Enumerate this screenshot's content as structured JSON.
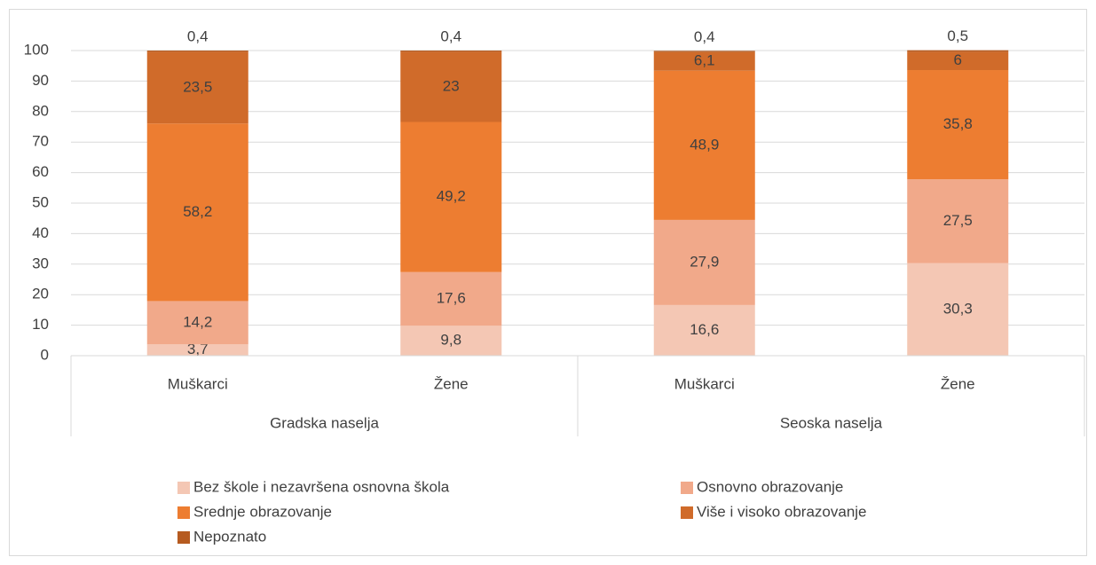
{
  "chart_data": {
    "type": "stacked_bar",
    "categories": [
      "Muškarci",
      "Žene",
      "Muškarci",
      "Žene"
    ],
    "groups": [
      {
        "label": "Gradska naselja",
        "size": 2
      },
      {
        "label": "Seoska naselja",
        "size": 2
      }
    ],
    "series": [
      {
        "name": "Bez škole i nezavršena osnovna škola",
        "color": "#f4c7b4",
        "values": [
          3.7,
          9.8,
          16.6,
          30.3
        ],
        "value_labels": [
          "3,7",
          "9,8",
          "16,6",
          "30,3"
        ]
      },
      {
        "name": "Osnovno obrazovanje",
        "color": "#f1a98a",
        "values": [
          14.2,
          17.6,
          27.9,
          27.5
        ],
        "value_labels": [
          "14,2",
          "17,6",
          "27,9",
          "27,5"
        ]
      },
      {
        "name": "Srednje obrazovanje",
        "color": "#ed7d31",
        "values": [
          58.2,
          49.2,
          48.9,
          35.8
        ],
        "value_labels": [
          "58,2",
          "49,2",
          "48,9",
          "35,8"
        ]
      },
      {
        "name": "Više i visoko obrazovanje",
        "color": "#d06b2a",
        "values": [
          23.5,
          23,
          6.1,
          6
        ],
        "value_labels": [
          "23,5",
          "23",
          "6,1",
          "6"
        ]
      },
      {
        "name": "Nepoznato",
        "color": "#b65b20",
        "values": [
          0.4,
          0.4,
          0.4,
          0.5
        ],
        "value_labels": [
          "0,4",
          "0,4",
          "0,4",
          "0,5"
        ]
      }
    ],
    "ylim": [
      0,
      100
    ],
    "yticks": [
      0,
      10,
      20,
      30,
      40,
      50,
      60,
      70,
      80,
      90,
      100
    ],
    "grid": true,
    "legend": "bottom"
  }
}
